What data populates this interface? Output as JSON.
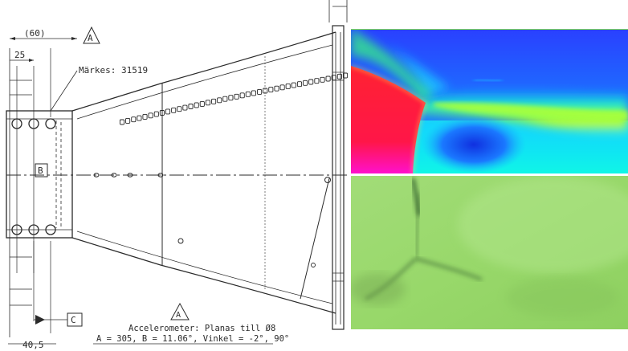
{
  "drawing": {
    "dim_60": "(60)",
    "dim_25": "25",
    "dim_40_5": "40,5",
    "marker_text": "Märkes: 31519",
    "datum_a": "A",
    "datum_a_bottom": "A",
    "datum_b": "B",
    "datum_c": "C",
    "note_line1": "Accelerometer: Planas till Ø8",
    "note_line2": "A = 305, B = 11.06°, Vinkel = -2°, 90°"
  },
  "colors": {
    "cfd_red": "#ff1a3a",
    "cfd_blue": "#1565ff",
    "cfd_green": "#46ff46",
    "photo_green": "#96d86a"
  }
}
